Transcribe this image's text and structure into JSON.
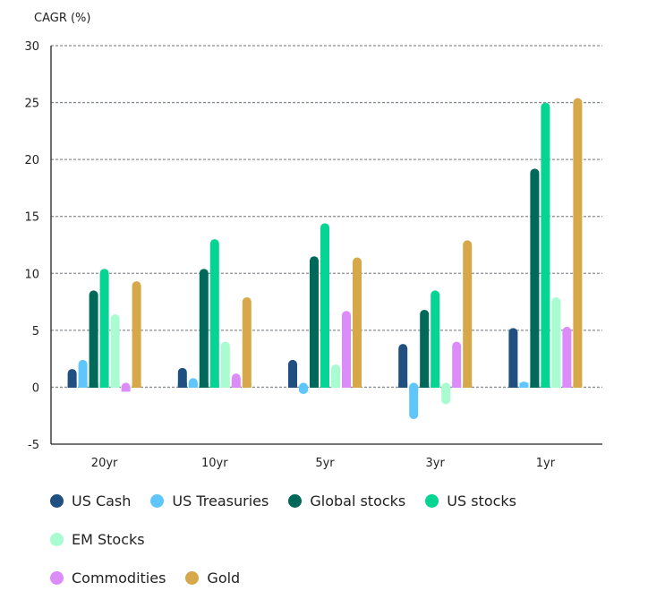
{
  "chart_data": {
    "type": "bar",
    "ylabel": "CAGR (%)",
    "ylim": [
      -5,
      30
    ],
    "yticks": [
      -5,
      0,
      5,
      10,
      15,
      20,
      25,
      30
    ],
    "grid": true,
    "legend_position": "bottom",
    "categories": [
      "20yr",
      "10yr",
      "5yr",
      "3yr",
      "1yr"
    ],
    "series": [
      {
        "name": "US Cash",
        "color": "#1f5080",
        "values": [
          1.6,
          1.7,
          2.4,
          3.8,
          5.2
        ]
      },
      {
        "name": "US Treasuries",
        "color": "#5fc6fb",
        "values": [
          2.4,
          0.8,
          -0.6,
          -2.8,
          0.5
        ]
      },
      {
        "name": "Global stocks",
        "color": "#00695a",
        "values": [
          8.5,
          10.4,
          11.5,
          6.8,
          19.2
        ]
      },
      {
        "name": "US stocks",
        "color": "#05d492",
        "values": [
          10.4,
          13.0,
          14.4,
          8.5,
          25.0
        ]
      },
      {
        "name": "EM Stocks",
        "color": "#a9fbd0",
        "values": [
          6.4,
          4.0,
          2.0,
          -1.5,
          7.9
        ]
      },
      {
        "name": "Commodities",
        "color": "#dc8cf9",
        "values": [
          -0.3,
          1.2,
          6.7,
          4.0,
          5.3
        ]
      },
      {
        "name": "Gold",
        "color": "#d6a84a",
        "values": [
          9.3,
          7.9,
          11.4,
          12.9,
          25.4
        ]
      }
    ]
  }
}
